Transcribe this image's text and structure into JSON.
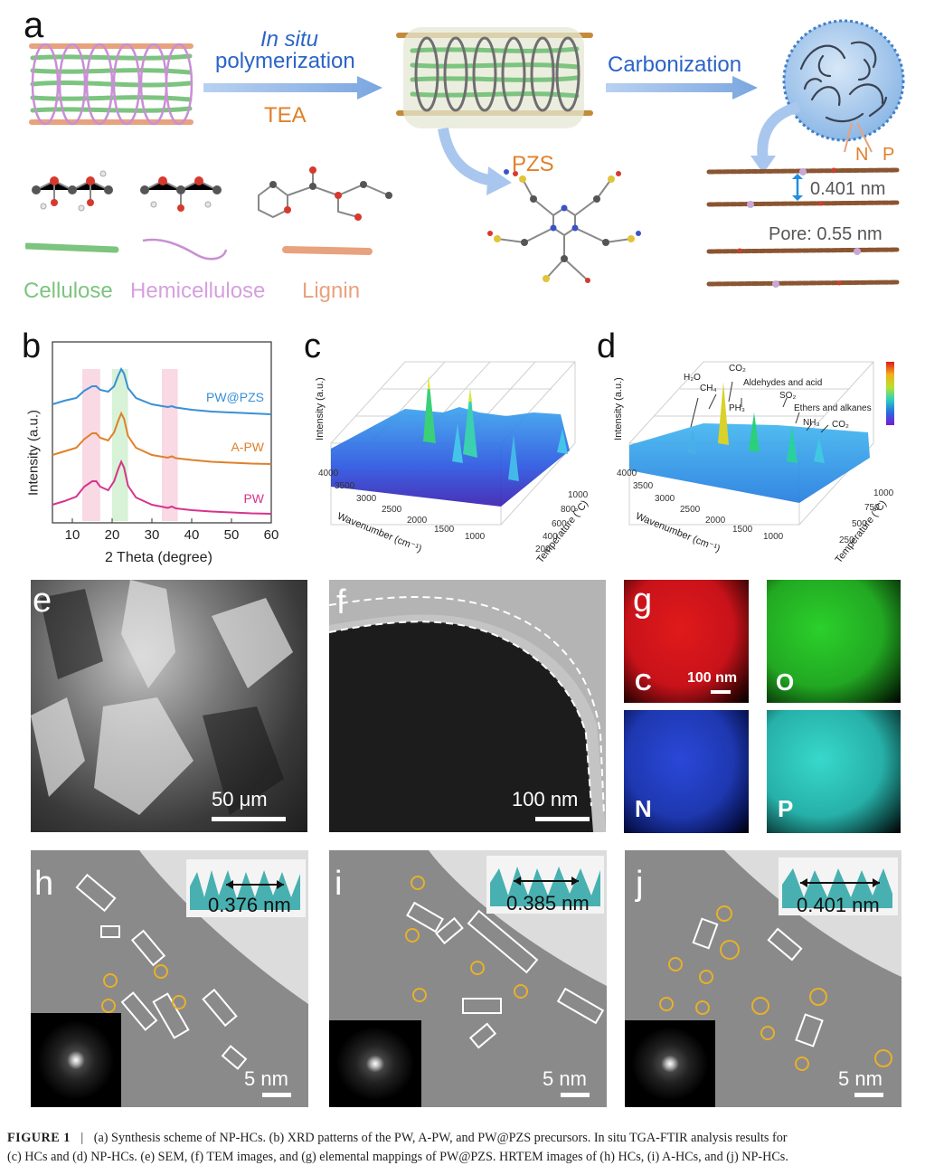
{
  "panels": {
    "a": {
      "letter": "a",
      "step1_line1": "In situ",
      "step1_line2": "polymerization",
      "step1_reagent": "TEA",
      "step2": "Carbonization",
      "pzs": "PZS",
      "np_n": "N",
      "np_p": "P",
      "spacing": "0.401 nm",
      "pore": "Pore: 0.55 nm",
      "legend": [
        "Cellulose",
        "Hemicellulose",
        "Lignin"
      ],
      "colors": {
        "cellulose": "#7cc47f",
        "hemicellulose": "#d9a3e0",
        "lignin": "#e8a27d",
        "arrow": "#8fb4e6"
      }
    },
    "b": {
      "letter": "b"
    },
    "c": {
      "letter": "c"
    },
    "d": {
      "letter": "d"
    },
    "e": {
      "letter": "e",
      "scale": "50 μm"
    },
    "f": {
      "letter": "f",
      "scale": "100 nm"
    },
    "g": {
      "letter": "g",
      "scale": "100 nm",
      "maps": [
        {
          "label": "C",
          "color": "#d8141a"
        },
        {
          "label": "O",
          "color": "#2bbd2b"
        },
        {
          "label": "N",
          "color": "#2a3fc4"
        },
        {
          "label": "P",
          "color": "#2ec9c0"
        }
      ]
    },
    "h": {
      "letter": "h",
      "spacing": "0.376 nm",
      "scale": "5 nm"
    },
    "i": {
      "letter": "i",
      "spacing": "0.385 nm",
      "scale": "5 nm"
    },
    "j": {
      "letter": "j",
      "spacing": "0.401 nm",
      "scale": "5 nm"
    }
  },
  "chart_data": [
    {
      "type": "line",
      "xlabel": "2 Theta (degree)",
      "ylabel": "Intensity (a.u.)",
      "xlim": [
        5,
        60
      ],
      "xticks": [
        10,
        20,
        30,
        40,
        50,
        60
      ],
      "series": [
        {
          "name": "PW@PZS",
          "color": "#3a8fd6",
          "offset": 2.2,
          "x": [
            5,
            8,
            11,
            13,
            15,
            16,
            17,
            19,
            20.5,
            21.5,
            22.3,
            23,
            24,
            26,
            30,
            34,
            35,
            36,
            40,
            45,
            50,
            55,
            60
          ],
          "y": [
            0.22,
            0.3,
            0.36,
            0.52,
            0.62,
            0.62,
            0.54,
            0.5,
            0.62,
            0.85,
            1.0,
            0.9,
            0.58,
            0.36,
            0.22,
            0.16,
            0.18,
            0.15,
            0.1,
            0.06,
            0.04,
            0.02,
            0.0
          ]
        },
        {
          "name": "A-PW",
          "color": "#e0802a",
          "offset": 1.1,
          "x": [
            5,
            8,
            11,
            13,
            15,
            16,
            17,
            19,
            20.5,
            21.5,
            22.3,
            23,
            24,
            26,
            30,
            34,
            35,
            36,
            40,
            45,
            50,
            55,
            60
          ],
          "y": [
            0.2,
            0.28,
            0.36,
            0.55,
            0.68,
            0.68,
            0.58,
            0.52,
            0.7,
            0.95,
            1.12,
            1.0,
            0.62,
            0.36,
            0.2,
            0.14,
            0.17,
            0.13,
            0.09,
            0.05,
            0.03,
            0.01,
            0.0
          ]
        },
        {
          "name": "PW",
          "color": "#d6348c",
          "offset": 0.0,
          "x": [
            5,
            8,
            11,
            13,
            15,
            16,
            17,
            19,
            20.5,
            21.5,
            22.3,
            23,
            24,
            26,
            30,
            34,
            35,
            36,
            40,
            45,
            50,
            55,
            60
          ],
          "y": [
            0.2,
            0.28,
            0.38,
            0.6,
            0.72,
            0.72,
            0.6,
            0.52,
            0.72,
            0.98,
            1.15,
            1.02,
            0.62,
            0.36,
            0.2,
            0.13,
            0.16,
            0.12,
            0.08,
            0.05,
            0.03,
            0.01,
            0.0
          ]
        }
      ],
      "highlight_bands": [
        {
          "from": 12.5,
          "to": 17,
          "color": "#f7c9d9"
        },
        {
          "from": 20,
          "to": 24,
          "color": "#c6ecc6"
        },
        {
          "from": 32.5,
          "to": 36.5,
          "color": "#f7c9d9"
        }
      ],
      "grid": false
    },
    {
      "type": "surface3d",
      "xlabel": "Wavenumber (cm⁻¹)",
      "ylabel": "Intensity (a.u.)",
      "zlabel": "Temperature (°C)",
      "xticks": [
        4000,
        3500,
        3000,
        2500,
        2000,
        1500,
        1000
      ],
      "zticks": [
        200,
        400,
        600,
        800,
        1000
      ],
      "peaks_wavenumber": [
        2350,
        1750,
        1500,
        1100
      ],
      "grid": true
    },
    {
      "type": "surface3d",
      "xlabel": "Wavenumber (cm⁻¹)",
      "ylabel": "Intensity (a.u.)",
      "zlabel": "Temperature (°C)",
      "xticks": [
        4000,
        3500,
        3000,
        2500,
        2000,
        1500,
        1000
      ],
      "zticks": [
        250,
        500,
        750,
        1000
      ],
      "annotations": [
        "H₂O",
        "CH₄",
        "CO₂",
        "Aldehydes and acid",
        "PH₃",
        "SO₂",
        "Ethers and alkanes",
        "NH₃",
        "CO₂"
      ],
      "colorbar": true,
      "grid": true
    }
  ],
  "caption": {
    "label": "FIGURE 1",
    "separator": "|",
    "line1": "(a) Synthesis scheme of NP-HCs. (b) XRD patterns of the PW, A-PW, and PW@PZS precursors. In situ TGA-FTIR analysis results for",
    "line2": "(c) HCs and (d) NP-HCs. (e) SEM, (f) TEM images, and (g) elemental mappings of PW@PZS. HRTEM images of (h) HCs, (i) A-HCs, and (j) NP-HCs."
  }
}
